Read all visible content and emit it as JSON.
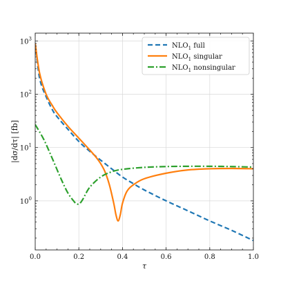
{
  "chart_data": {
    "type": "line",
    "xlabel": "τ",
    "ylabel": "|dσ/dτ| [fb]",
    "xlim": [
      0.0,
      1.0
    ],
    "ylim": [
      0.12,
      1400
    ],
    "yscale": "log",
    "grid": true,
    "legend_position": "top-right",
    "x_ticks": [
      0.0,
      0.2,
      0.4,
      0.6,
      0.8,
      1.0
    ],
    "x_tick_labels": [
      "0.0",
      "0.2",
      "0.4",
      "0.6",
      "0.8",
      "1.0"
    ],
    "y_ticks": [
      1,
      10,
      100,
      1000
    ],
    "y_tick_labels": [
      {
        "base": "10",
        "exp": "0"
      },
      {
        "base": "10",
        "exp": "1"
      },
      {
        "base": "10",
        "exp": "2"
      },
      {
        "base": "10",
        "exp": "3"
      }
    ],
    "series": [
      {
        "name": "NLO",
        "subscript": "1",
        "name_suffix": " full",
        "color": "#1f77b4",
        "dash": "dashed",
        "x": [
          0.0,
          0.02,
          0.05,
          0.08,
          0.1,
          0.15,
          0.2,
          0.25,
          0.3,
          0.35,
          0.4,
          0.45,
          0.5,
          0.6,
          0.7,
          0.8,
          0.9,
          1.0
        ],
        "y": [
          900,
          200,
          90,
          50,
          38,
          22,
          13,
          8.5,
          5.8,
          4.0,
          2.8,
          2.1,
          1.6,
          1.0,
          0.65,
          0.42,
          0.28,
          0.18
        ]
      },
      {
        "name": "NLO",
        "subscript": "1",
        "name_suffix": " singular",
        "color": "#ff7f0e",
        "dash": "solid",
        "x": [
          0.0,
          0.02,
          0.05,
          0.08,
          0.1,
          0.15,
          0.2,
          0.25,
          0.28,
          0.3,
          0.32,
          0.34,
          0.36,
          0.37,
          0.38,
          0.39,
          0.4,
          0.42,
          0.45,
          0.5,
          0.6,
          0.7,
          0.8,
          0.9,
          1.0
        ],
        "y": [
          900,
          250,
          100,
          60,
          45,
          25,
          15,
          9,
          6.5,
          5,
          3.5,
          2.0,
          0.9,
          0.55,
          0.42,
          0.55,
          0.9,
          1.5,
          2.0,
          2.6,
          3.3,
          3.8,
          4.0,
          4.05,
          4.0
        ]
      },
      {
        "name": "NLO",
        "subscript": "1",
        "name_suffix": " nonsingular",
        "color": "#2ca02c",
        "dash": "dashdot",
        "x": [
          0.0,
          0.04,
          0.08,
          0.12,
          0.15,
          0.18,
          0.19,
          0.2,
          0.21,
          0.22,
          0.25,
          0.3,
          0.35,
          0.4,
          0.5,
          0.6,
          0.7,
          0.8,
          0.9,
          1.0
        ],
        "y": [
          27,
          14,
          6,
          2.5,
          1.4,
          0.95,
          0.88,
          0.87,
          0.95,
          1.1,
          1.8,
          2.8,
          3.5,
          3.9,
          4.25,
          4.4,
          4.45,
          4.45,
          4.4,
          4.3
        ]
      }
    ]
  }
}
